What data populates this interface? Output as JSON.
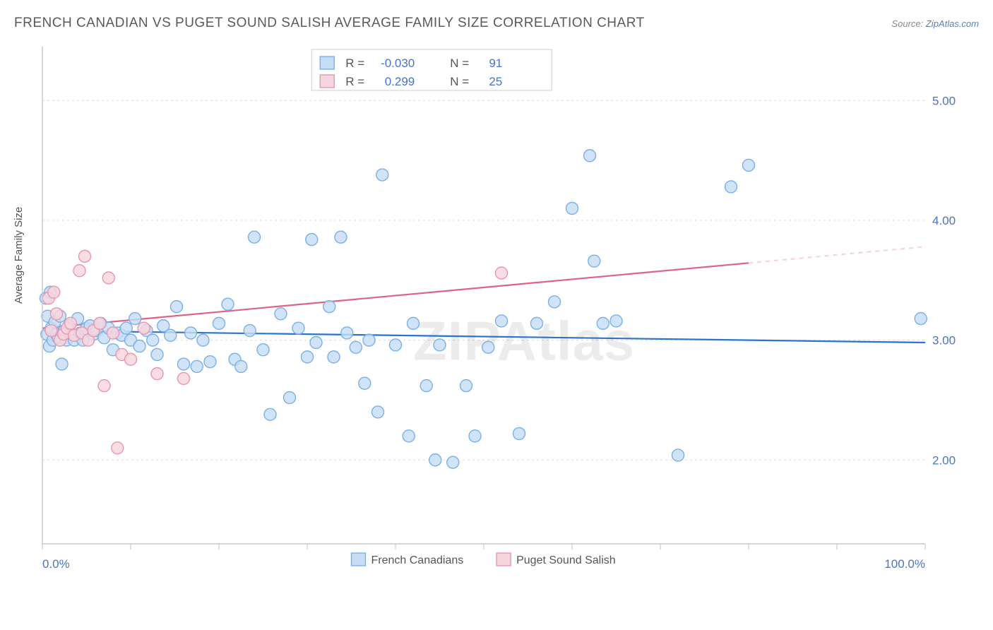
{
  "title": "FRENCH CANADIAN VS PUGET SOUND SALISH AVERAGE FAMILY SIZE CORRELATION CHART",
  "source_label": "Source:",
  "source_name": "ZipAtlas.com",
  "ylabel": "Average Family Size",
  "watermark": "ZIPAtlas",
  "chart": {
    "type": "scatter",
    "plot_bg": "#ffffff",
    "grid_color": "#d8d8d8",
    "grid_dash": "3,4",
    "axis_line_color": "#c8c8c8",
    "tick_color": "#c0c0c0",
    "xlim": [
      0,
      100
    ],
    "ylim": [
      1.3,
      5.45
    ],
    "y_ticks": [
      2.0,
      3.0,
      4.0,
      5.0
    ],
    "x_ticks_minor": [
      0,
      10,
      20,
      30,
      40,
      50,
      60,
      70,
      80,
      90,
      100
    ],
    "x_labels": [
      {
        "v": 0,
        "t": "0.0%"
      },
      {
        "v": 100,
        "t": "100.0%"
      }
    ],
    "marker_radius": 8.5,
    "marker_stroke_w": 1.4,
    "trend_line_w": 2.2,
    "series": [
      {
        "name": "French Canadians",
        "fill": "#c6ddf5",
        "stroke": "#7bb0e6",
        "trend_color": "#2b73cf",
        "trend_dash_color": "#c9dcf2",
        "R": "-0.030",
        "N": "91",
        "solid_end_x": 100,
        "trend": {
          "x0": 0,
          "y0": 3.08,
          "x1": 100,
          "y1": 2.98
        },
        "points": [
          [
            0.4,
            3.35
          ],
          [
            0.5,
            3.05
          ],
          [
            0.6,
            3.2
          ],
          [
            0.8,
            2.95
          ],
          [
            0.9,
            3.4
          ],
          [
            1.0,
            3.1
          ],
          [
            1.2,
            3.0
          ],
          [
            1.4,
            3.15
          ],
          [
            1.6,
            3.05
          ],
          [
            1.8,
            3.02
          ],
          [
            2.0,
            3.2
          ],
          [
            2.2,
            2.8
          ],
          [
            2.5,
            3.08
          ],
          [
            2.7,
            3.0
          ],
          [
            3.0,
            3.12
          ],
          [
            3.3,
            3.05
          ],
          [
            3.6,
            3.0
          ],
          [
            4.0,
            3.18
          ],
          [
            4.3,
            3.06
          ],
          [
            4.6,
            3.0
          ],
          [
            5.0,
            3.1
          ],
          [
            5.4,
            3.12
          ],
          [
            5.8,
            3.05
          ],
          [
            6.2,
            3.08
          ],
          [
            6.6,
            3.14
          ],
          [
            7.0,
            3.02
          ],
          [
            7.5,
            3.1
          ],
          [
            8.0,
            2.92
          ],
          [
            8.5,
            3.06
          ],
          [
            9.0,
            3.04
          ],
          [
            9.5,
            3.1
          ],
          [
            10.0,
            3.0
          ],
          [
            10.5,
            3.18
          ],
          [
            11.0,
            2.95
          ],
          [
            11.8,
            3.08
          ],
          [
            12.5,
            3.0
          ],
          [
            13.0,
            2.88
          ],
          [
            13.7,
            3.12
          ],
          [
            14.5,
            3.04
          ],
          [
            15.2,
            3.28
          ],
          [
            16.0,
            2.8
          ],
          [
            16.8,
            3.06
          ],
          [
            17.5,
            2.78
          ],
          [
            18.2,
            3.0
          ],
          [
            19.0,
            2.82
          ],
          [
            20.0,
            3.14
          ],
          [
            21.0,
            3.3
          ],
          [
            21.8,
            2.84
          ],
          [
            22.5,
            2.78
          ],
          [
            23.5,
            3.08
          ],
          [
            24.0,
            3.86
          ],
          [
            25.0,
            2.92
          ],
          [
            25.8,
            2.38
          ],
          [
            27.0,
            3.22
          ],
          [
            28.0,
            2.52
          ],
          [
            29.0,
            3.1
          ],
          [
            30.0,
            2.86
          ],
          [
            30.5,
            3.84
          ],
          [
            31.0,
            2.98
          ],
          [
            32.5,
            3.28
          ],
          [
            33.0,
            2.86
          ],
          [
            33.8,
            3.86
          ],
          [
            34.5,
            3.06
          ],
          [
            35.5,
            2.94
          ],
          [
            36.5,
            2.64
          ],
          [
            37.0,
            3.0
          ],
          [
            38.0,
            2.4
          ],
          [
            38.5,
            4.38
          ],
          [
            40.0,
            2.96
          ],
          [
            41.5,
            2.2
          ],
          [
            42.0,
            3.14
          ],
          [
            43.5,
            2.62
          ],
          [
            44.5,
            2.0
          ],
          [
            45.0,
            2.96
          ],
          [
            46.5,
            1.98
          ],
          [
            48.0,
            2.62
          ],
          [
            49.0,
            2.2
          ],
          [
            50.5,
            2.94
          ],
          [
            52.0,
            3.16
          ],
          [
            54.0,
            2.22
          ],
          [
            56.0,
            3.14
          ],
          [
            58.0,
            3.32
          ],
          [
            60.0,
            4.1
          ],
          [
            62.0,
            4.54
          ],
          [
            62.5,
            3.66
          ],
          [
            63.5,
            3.14
          ],
          [
            65.0,
            3.16
          ],
          [
            72.0,
            2.04
          ],
          [
            78.0,
            4.28
          ],
          [
            80.0,
            4.46
          ],
          [
            99.5,
            3.18
          ]
        ]
      },
      {
        "name": "Puget Sound Salish",
        "fill": "#f6d6de",
        "stroke": "#e996ae",
        "trend_color": "#de6486",
        "trend_dash_color": "#f3d5de",
        "R": "0.299",
        "N": "25",
        "solid_end_x": 80,
        "trend": {
          "x0": 0,
          "y0": 3.1,
          "x1": 100,
          "y1": 3.78
        },
        "points": [
          [
            0.7,
            3.35
          ],
          [
            1.0,
            3.08
          ],
          [
            1.3,
            3.4
          ],
          [
            1.6,
            3.22
          ],
          [
            2.0,
            3.0
          ],
          [
            2.4,
            3.05
          ],
          [
            2.8,
            3.1
          ],
          [
            3.2,
            3.14
          ],
          [
            3.6,
            3.04
          ],
          [
            4.2,
            3.58
          ],
          [
            4.5,
            3.06
          ],
          [
            4.8,
            3.7
          ],
          [
            5.2,
            3.0
          ],
          [
            5.8,
            3.08
          ],
          [
            6.5,
            3.14
          ],
          [
            7.0,
            2.62
          ],
          [
            7.5,
            3.52
          ],
          [
            8.0,
            3.06
          ],
          [
            9.0,
            2.88
          ],
          [
            10.0,
            2.84
          ],
          [
            11.5,
            3.1
          ],
          [
            13.0,
            2.72
          ],
          [
            16.0,
            2.68
          ],
          [
            8.5,
            2.1
          ],
          [
            52.0,
            3.56
          ]
        ]
      }
    ]
  },
  "stats_box": {
    "border": "#cfcfcf",
    "rows": [
      {
        "swatch_fill": "#c6ddf5",
        "swatch_stroke": "#7bb0e6",
        "R": "-0.030",
        "N": "91"
      },
      {
        "swatch_fill": "#f6d6de",
        "swatch_stroke": "#e996ae",
        "R": "0.299",
        "N": "25"
      }
    ],
    "labels": {
      "R": "R =",
      "N": "N ="
    }
  },
  "bottom_legend": [
    {
      "swatch_fill": "#c6ddf5",
      "swatch_stroke": "#7bb0e6",
      "label": "French Canadians"
    },
    {
      "swatch_fill": "#f6d6de",
      "swatch_stroke": "#e996ae",
      "label": "Puget Sound Salish"
    }
  ]
}
